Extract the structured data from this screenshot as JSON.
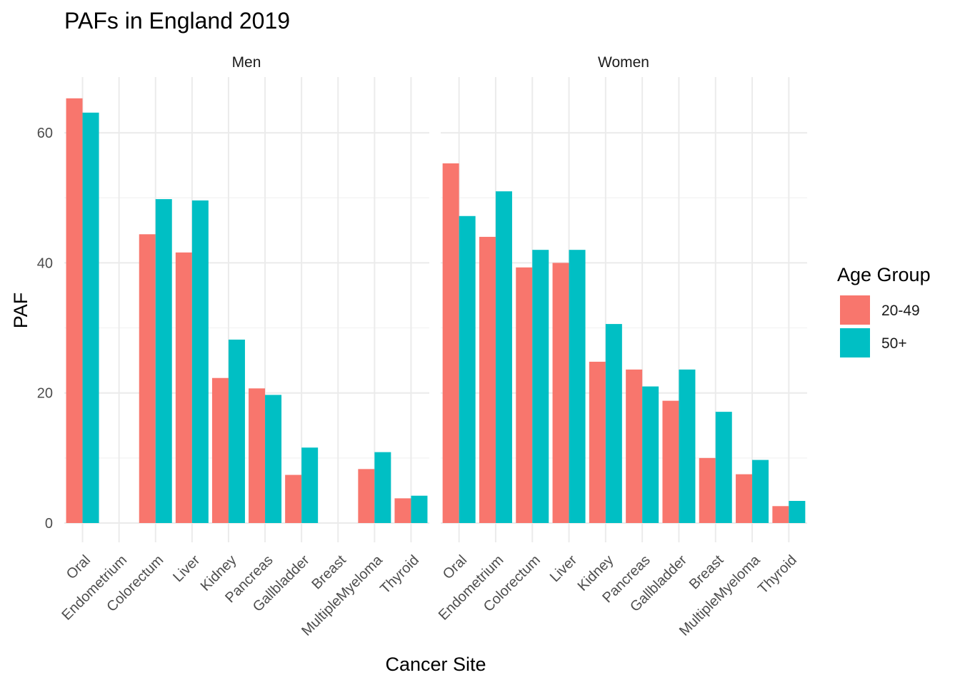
{
  "chart_data": {
    "type": "bar",
    "title": "PAFs in England 2019",
    "xlabel": "Cancer Site",
    "ylabel": "PAF",
    "ylim": [
      0,
      68
    ],
    "yticks": [
      0,
      20,
      40,
      60
    ],
    "grid": true,
    "legend": {
      "title": "Age Group",
      "position": "right",
      "entries": [
        "20-49",
        "50+"
      ]
    },
    "colors": {
      "20-49": "#F8766D",
      "50+": "#00BFC4"
    },
    "categories": [
      "Oral",
      "Endometrium",
      "Colorectum",
      "Liver",
      "Kidney",
      "Pancreas",
      "Gallbladder",
      "Breast",
      "MultipleMyeloma",
      "Thyroid"
    ],
    "facets": [
      {
        "label": "Men",
        "series": [
          {
            "name": "20-49",
            "values": [
              65.3,
              null,
              44.4,
              41.6,
              22.3,
              20.7,
              7.4,
              null,
              8.3,
              3.8
            ]
          },
          {
            "name": "50+",
            "values": [
              63.1,
              null,
              49.8,
              49.6,
              28.2,
              19.7,
              11.6,
              null,
              10.9,
              4.2
            ]
          }
        ]
      },
      {
        "label": "Women",
        "series": [
          {
            "name": "20-49",
            "values": [
              55.3,
              44.0,
              39.3,
              40.0,
              24.8,
              23.6,
              18.8,
              10.0,
              7.5,
              2.6
            ]
          },
          {
            "name": "50+",
            "values": [
              47.2,
              51.0,
              42.0,
              42.0,
              30.6,
              21.0,
              23.6,
              17.1,
              9.7,
              3.4
            ]
          }
        ]
      }
    ]
  }
}
